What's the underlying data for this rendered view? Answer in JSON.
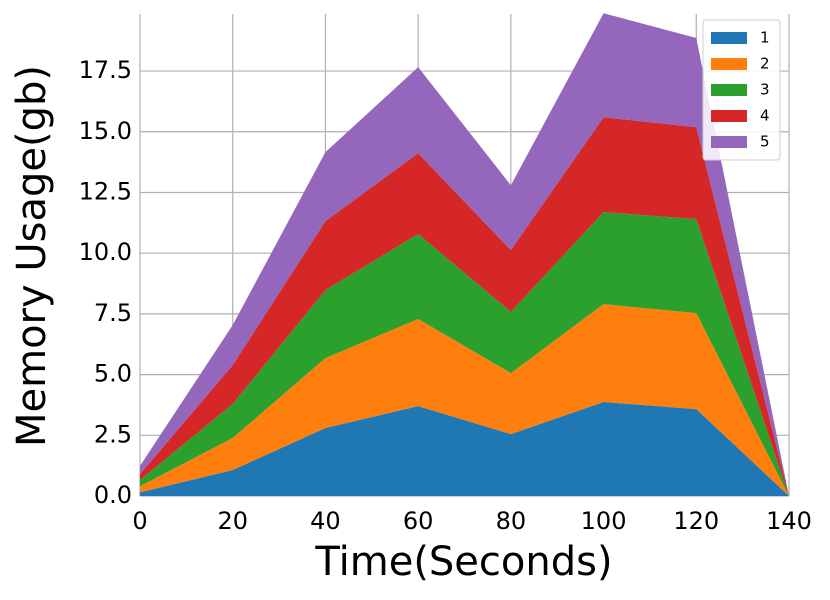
{
  "chart_data": {
    "type": "stacked_area",
    "x": [
      0,
      20,
      40,
      60,
      80,
      100,
      120,
      140
    ],
    "series": [
      {
        "name": "1",
        "color": "#1f77b4",
        "values": [
          0.15,
          1.07,
          2.8,
          3.7,
          2.55,
          3.87,
          3.58,
          0
        ]
      },
      {
        "name": "2",
        "color": "#ff7f0e",
        "values": [
          0.25,
          1.32,
          2.88,
          3.59,
          2.51,
          4.03,
          3.95,
          0
        ]
      },
      {
        "name": "3",
        "color": "#2ca02c",
        "values": [
          0.26,
          1.4,
          2.8,
          3.5,
          2.52,
          3.79,
          3.87,
          0
        ]
      },
      {
        "name": "4",
        "color": "#d62728",
        "values": [
          0.24,
          1.6,
          2.84,
          3.33,
          2.55,
          3.91,
          3.79,
          0
        ]
      },
      {
        "name": "5",
        "color": "#9467bd",
        "values": [
          0.34,
          1.65,
          2.84,
          3.54,
          2.67,
          4.28,
          3.67,
          0
        ]
      }
    ],
    "xlabel": "Time(Seconds)",
    "ylabel": "Memory Usage(gb)",
    "xlim": [
      0,
      140
    ],
    "ylim": [
      0,
      19.85
    ],
    "xticks": [
      0,
      20,
      40,
      60,
      80,
      100,
      120,
      140
    ],
    "yticks": [
      {
        "value": 0,
        "label": "0.0"
      },
      2.5,
      {
        "value": 5,
        "label": "5.0"
      },
      7.5,
      {
        "value": 10,
        "label": "10.0"
      },
      12.5,
      {
        "value": 15,
        "label": "15.0"
      },
      17.5
    ],
    "grid": true,
    "legend": "upper right"
  }
}
